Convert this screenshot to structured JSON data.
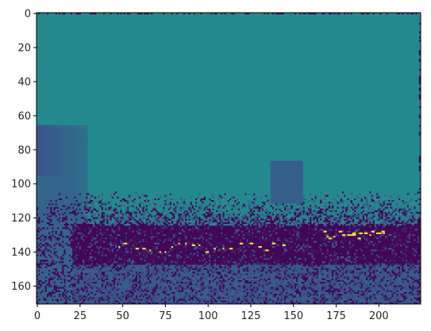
{
  "chart_data": {
    "type": "heatmap",
    "title": "",
    "xlabel": "",
    "ylabel": "",
    "colormap": "viridis",
    "image_width": 225,
    "image_height": 171,
    "xlim": [
      -0.5,
      224.5
    ],
    "ylim": [
      170.5,
      -0.5
    ],
    "x_ticks": [
      0,
      25,
      50,
      75,
      100,
      125,
      150,
      175,
      200
    ],
    "y_ticks": [
      0,
      20,
      40,
      60,
      80,
      100,
      120,
      140,
      160
    ],
    "x_tick_labels": [
      "0",
      "25",
      "50",
      "75",
      "100",
      "125",
      "150",
      "175",
      "200"
    ],
    "y_tick_labels": [
      "0",
      "20",
      "40",
      "60",
      "80",
      "100",
      "120",
      "140",
      "160"
    ],
    "grid": false,
    "legend": "none",
    "regions": [
      {
        "name": "background",
        "x": [
          0,
          224
        ],
        "y": [
          0,
          170
        ],
        "value": 0.5
      },
      {
        "name": "upper-field",
        "x": [
          0,
          224
        ],
        "y": [
          0,
          110
        ],
        "value": 0.45
      },
      {
        "name": "left-shadow",
        "x": [
          0,
          25
        ],
        "y": [
          75,
          170
        ],
        "value": 0.3
      },
      {
        "name": "object",
        "x": [
          138,
          154
        ],
        "y": [
          87,
          111
        ],
        "value": 0.28
      },
      {
        "name": "dark-band",
        "x": [
          20,
          224
        ],
        "y": [
          125,
          148
        ],
        "value": 0.0
      },
      {
        "name": "lower-field",
        "x": [
          0,
          224
        ],
        "y": [
          148,
          170
        ],
        "value": 0.15
      }
    ],
    "bright_points_value": 1.0,
    "colors": {
      "low": "#440154",
      "mid_dark": "#3b528b",
      "mid": "#21908d",
      "high": "#fde725"
    }
  }
}
